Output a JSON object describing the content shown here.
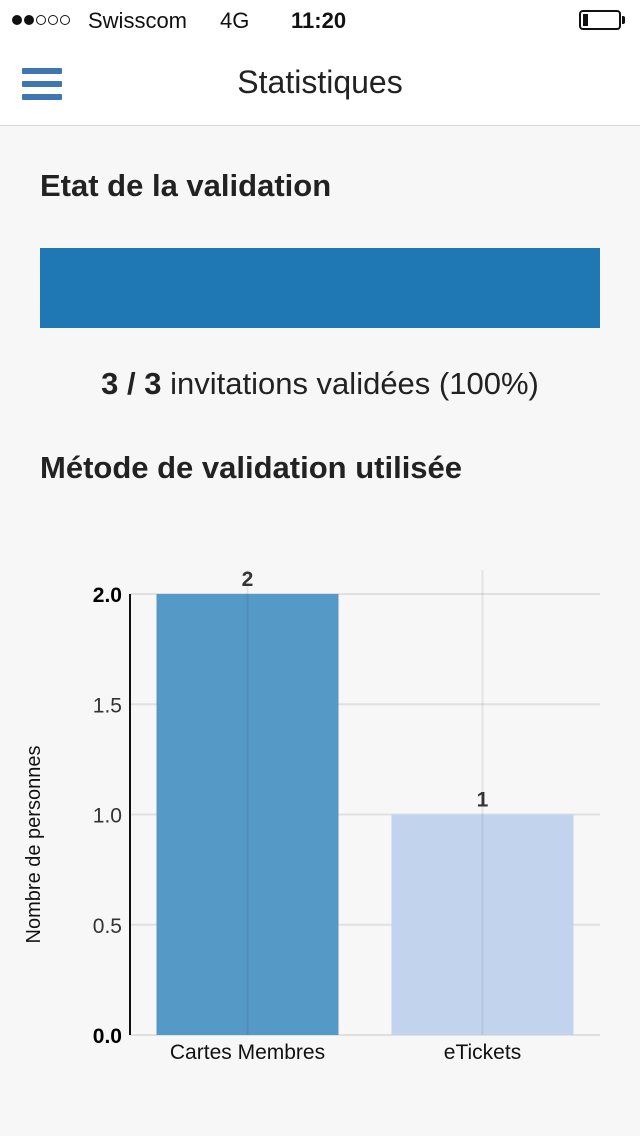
{
  "status_bar": {
    "signal_dots_filled": 2,
    "signal_dots_total": 5,
    "carrier": "Swisscom",
    "network": "4G",
    "time": "11:20",
    "battery_level": 0.15
  },
  "navbar": {
    "title": "Statistiques",
    "menu_icon": "hamburger-menu-icon",
    "accent_color": "#3d76b0"
  },
  "validation": {
    "section_title": "Etat de la validation",
    "validated": "3",
    "separator": " / ",
    "total": "3",
    "text": " invitations validées (100%)",
    "progress_fraction": 1.0,
    "bar_color": "#1f78b4"
  },
  "methode": {
    "section_title": "Métode de validation utilisée"
  },
  "chart_data": {
    "type": "bar",
    "categories": [
      "Cartes Membres",
      "eTickets"
    ],
    "values": [
      2,
      1
    ],
    "data_labels": [
      "2",
      "1"
    ],
    "ylabel": "Nombre de personnes",
    "xlabel": "",
    "ylim": [
      0,
      2.0
    ],
    "yticks": [
      "0.0",
      "0.5",
      "1.0",
      "1.5",
      "2.0"
    ],
    "bar_colors": [
      "#5599c6",
      "#c2d4ed"
    ],
    "grid": true
  }
}
